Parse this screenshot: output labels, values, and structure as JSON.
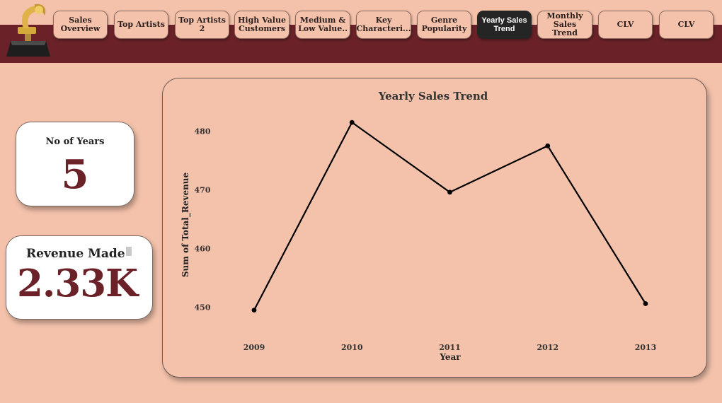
{
  "nav": {
    "items": [
      {
        "label_lines": [
          "Sales",
          "Overview"
        ]
      },
      {
        "label_lines": [
          "Top Artists"
        ]
      },
      {
        "label_lines": [
          "Top Artists 2"
        ]
      },
      {
        "label_lines": [
          "High Value",
          "Customers"
        ]
      },
      {
        "label_lines": [
          "Medium &",
          "Low Value.."
        ]
      },
      {
        "label_lines": [
          "Key",
          "Characteri..."
        ]
      },
      {
        "label_lines": [
          "Genre",
          "Popularity"
        ]
      },
      {
        "label_lines": [
          "Yearly Sales",
          "Trend"
        ],
        "active": true
      },
      {
        "label_lines": [
          "Monthly",
          "Sales Trend"
        ]
      },
      {
        "label_lines": [
          "CLV"
        ]
      },
      {
        "label_lines": [
          "CLV"
        ]
      }
    ]
  },
  "kpi": {
    "years_title": "No of Years",
    "years_value": "5",
    "revenue_title": "Revenue Made",
    "revenue_value": "2.33K"
  },
  "colors": {
    "background": "#f4c2ab",
    "banner": "#6a2228",
    "accent": "#6a2228",
    "active_button": "#252525",
    "line": "#000000"
  },
  "chart_data": {
    "type": "line",
    "title": "Yearly Sales Trend",
    "xlabel": "Year",
    "ylabel": "Sum of Total_Revenue",
    "categories": [
      "2009",
      "2010",
      "2011",
      "2012",
      "2013"
    ],
    "values": [
      449.5,
      481.5,
      469.6,
      477.5,
      450.6
    ],
    "yticks": [
      450,
      460,
      470,
      480
    ],
    "ylim": [
      449,
      482
    ],
    "grid": false,
    "legend": "none"
  }
}
